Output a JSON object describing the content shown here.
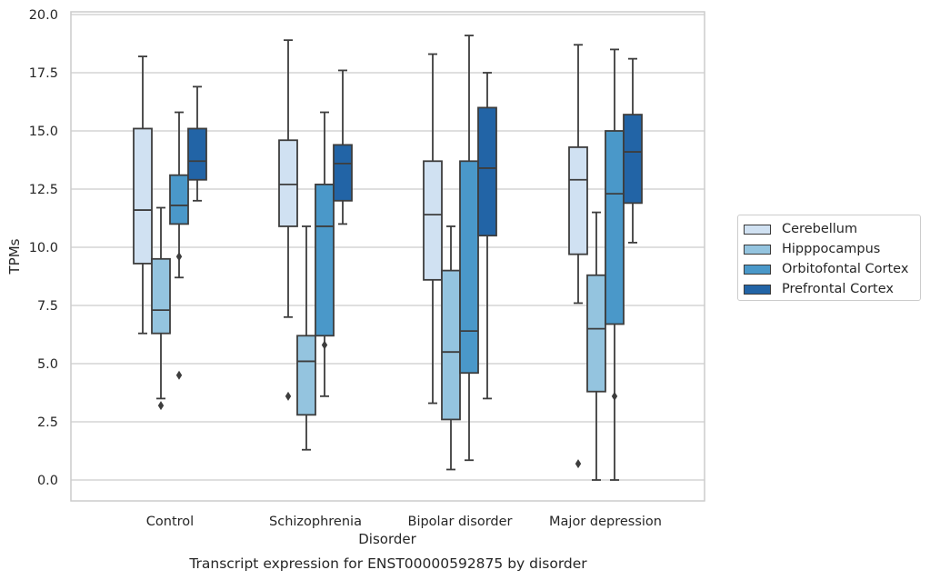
{
  "chart_data": {
    "type": "box",
    "title": "Transcript expression for ENST00000592875 by disorder",
    "xlabel": "Disorder",
    "ylabel": "TPMs",
    "ylim": [
      -0.9,
      20.2
    ],
    "yticks": [
      0,
      2.5,
      5,
      7.5,
      10,
      12.5,
      15,
      17.5,
      20
    ],
    "ytick_labels": [
      "0.0",
      "2.5",
      "5.0",
      "7.5",
      "10.0",
      "12.5",
      "15.0",
      "17.5",
      "20.0"
    ],
    "categories": [
      "Control",
      "Schizophrenia",
      "Bipolar disorder",
      "Major depression"
    ],
    "grid": "horizontal",
    "legend_position": "right",
    "series": [
      {
        "name": "Cerebellum",
        "color": "#d0e1f2",
        "boxes": [
          {
            "whislo": 6.3,
            "q1": 9.3,
            "med": 11.6,
            "q3": 15.1,
            "whishi": 18.2,
            "fliers": []
          },
          {
            "whislo": 7.0,
            "q1": 10.9,
            "med": 12.7,
            "q3": 14.6,
            "whishi": 18.9,
            "fliers": [
              3.6
            ]
          },
          {
            "whislo": 3.3,
            "q1": 8.6,
            "med": 11.4,
            "q3": 13.7,
            "whishi": 18.3,
            "fliers": []
          },
          {
            "whislo": 7.6,
            "q1": 9.7,
            "med": 12.9,
            "q3": 14.3,
            "whishi": 18.7,
            "fliers": [
              0.7
            ]
          }
        ]
      },
      {
        "name": "Hipppocampus",
        "color": "#94c4df",
        "boxes": [
          {
            "whislo": 3.5,
            "q1": 6.3,
            "med": 7.3,
            "q3": 9.5,
            "whishi": 11.7,
            "fliers": [
              3.2
            ]
          },
          {
            "whislo": 1.3,
            "q1": 2.8,
            "med": 5.1,
            "q3": 6.2,
            "whishi": 10.9,
            "fliers": []
          },
          {
            "whislo": 0.45,
            "q1": 2.6,
            "med": 5.5,
            "q3": 9.0,
            "whishi": 10.9,
            "fliers": []
          },
          {
            "whislo": 0.0,
            "q1": 3.8,
            "med": 6.5,
            "q3": 8.8,
            "whishi": 11.5,
            "fliers": []
          }
        ]
      },
      {
        "name": "Orbitofontal Cortex",
        "color": "#4a98c9",
        "boxes": [
          {
            "whislo": 8.7,
            "q1": 11.0,
            "med": 11.8,
            "q3": 13.1,
            "whishi": 15.8,
            "fliers": [
              9.6,
              4.5
            ]
          },
          {
            "whislo": 3.6,
            "q1": 6.2,
            "med": 10.9,
            "q3": 12.7,
            "whishi": 15.8,
            "fliers": [
              5.8
            ]
          },
          {
            "whislo": 0.85,
            "q1": 4.6,
            "med": 6.4,
            "q3": 13.7,
            "whishi": 19.1,
            "fliers": []
          },
          {
            "whislo": 0.0,
            "q1": 6.7,
            "med": 12.3,
            "q3": 15.0,
            "whishi": 18.5,
            "fliers": [
              3.6
            ]
          }
        ]
      },
      {
        "name": "Prefrontal Cortex",
        "color": "#2264a6",
        "boxes": [
          {
            "whislo": 12.0,
            "q1": 12.9,
            "med": 13.7,
            "q3": 15.1,
            "whishi": 16.9,
            "fliers": []
          },
          {
            "whislo": 11.0,
            "q1": 12.0,
            "med": 13.6,
            "q3": 14.4,
            "whishi": 17.6,
            "fliers": []
          },
          {
            "whislo": 3.5,
            "q1": 10.5,
            "med": 13.4,
            "q3": 16.0,
            "whishi": 17.5,
            "fliers": []
          },
          {
            "whislo": 10.2,
            "q1": 11.9,
            "med": 14.1,
            "q3": 15.7,
            "whishi": 18.1,
            "fliers": []
          }
        ]
      }
    ]
  }
}
